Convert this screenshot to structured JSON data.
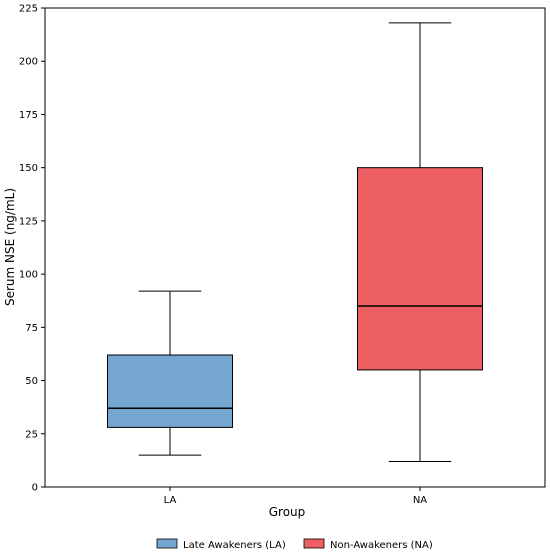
{
  "chart_data": {
    "type": "box",
    "xlabel": "Group",
    "ylabel": "Serum NSE (ng/mL)",
    "ylim": [
      0,
      225
    ],
    "yticks": [
      0,
      25,
      50,
      75,
      100,
      125,
      150,
      175,
      200,
      225
    ],
    "categories": [
      "LA",
      "NA"
    ],
    "grid": false,
    "legend_position": "bottom-center",
    "series": [
      {
        "name": "Late Awakeners (LA)",
        "category": "LA",
        "color": "#74a6d0",
        "whisker_low": 15,
        "q1": 28,
        "median": 37,
        "q3": 62,
        "whisker_high": 92
      },
      {
        "name": "Non-Awakeners (NA)",
        "category": "NA",
        "color": "#ee5f64",
        "whisker_low": 12,
        "q1": 55,
        "median": 85,
        "q3": 150,
        "whisker_high": 218
      }
    ]
  }
}
